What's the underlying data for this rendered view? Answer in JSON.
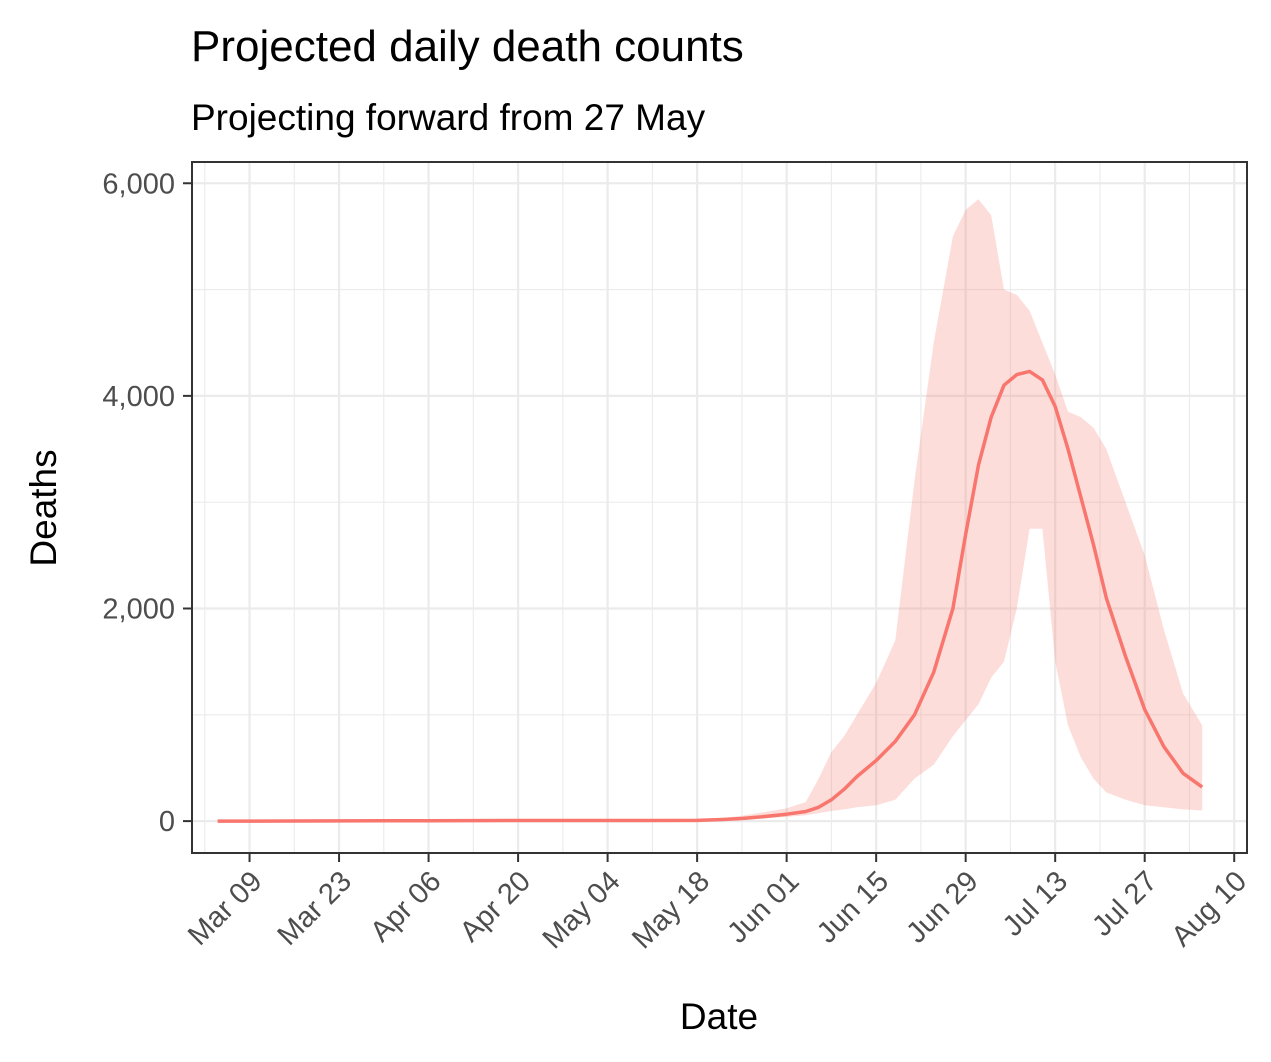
{
  "chart_data": {
    "type": "line",
    "title": "Projected daily death counts",
    "subtitle": "Projecting forward from 27 May",
    "xlabel": "Date",
    "ylabel": "Deaths",
    "x_range": [
      "2020-02-29",
      "2020-08-12"
    ],
    "ylim": [
      -300,
      6200
    ],
    "grid": true,
    "x_ticks": [
      {
        "date": "2020-03-09",
        "label": "Mar 09"
      },
      {
        "date": "2020-03-23",
        "label": "Mar 23"
      },
      {
        "date": "2020-04-06",
        "label": "Apr 06"
      },
      {
        "date": "2020-04-20",
        "label": "Apr 20"
      },
      {
        "date": "2020-05-04",
        "label": "May 04"
      },
      {
        "date": "2020-05-18",
        "label": "May 18"
      },
      {
        "date": "2020-06-01",
        "label": "Jun 01"
      },
      {
        "date": "2020-06-15",
        "label": "Jun 15"
      },
      {
        "date": "2020-06-29",
        "label": "Jun 29"
      },
      {
        "date": "2020-07-13",
        "label": "Jul 13"
      },
      {
        "date": "2020-07-27",
        "label": "Jul 27"
      },
      {
        "date": "2020-08-10",
        "label": "Aug 10"
      }
    ],
    "y_ticks": [
      {
        "value": 0,
        "label": "0"
      },
      {
        "value": 2000,
        "label": "2,000"
      },
      {
        "value": 4000,
        "label": "4,000"
      },
      {
        "value": 6000,
        "label": "6,000"
      }
    ],
    "series": [
      {
        "color": "#F8766D",
        "ribbon_color": "#F8766D",
        "ribbon_opacity": 0.25,
        "x": [
          "2020-03-04",
          "2020-03-09",
          "2020-03-16",
          "2020-03-23",
          "2020-03-30",
          "2020-04-06",
          "2020-04-13",
          "2020-04-20",
          "2020-04-27",
          "2020-05-04",
          "2020-05-11",
          "2020-05-18",
          "2020-05-22",
          "2020-05-25",
          "2020-05-28",
          "2020-06-01",
          "2020-06-04",
          "2020-06-06",
          "2020-06-08",
          "2020-06-10",
          "2020-06-12",
          "2020-06-15",
          "2020-06-18",
          "2020-06-21",
          "2020-06-24",
          "2020-06-27",
          "2020-06-29",
          "2020-07-01",
          "2020-07-03",
          "2020-07-05",
          "2020-07-07",
          "2020-07-09",
          "2020-07-11",
          "2020-07-13",
          "2020-07-15",
          "2020-07-17",
          "2020-07-19",
          "2020-07-21",
          "2020-07-24",
          "2020-07-27",
          "2020-07-30",
          "2020-08-02",
          "2020-08-05"
        ],
        "y": [
          0,
          0,
          1,
          2,
          3,
          4,
          5,
          6,
          6,
          6,
          6,
          7,
          15,
          25,
          40,
          65,
          90,
          130,
          200,
          300,
          420,
          570,
          750,
          1000,
          1400,
          2000,
          2700,
          3350,
          3800,
          4100,
          4200,
          4230,
          4150,
          3900,
          3500,
          3050,
          2600,
          2100,
          1550,
          1050,
          700,
          450,
          320
        ],
        "lower": [
          0,
          0,
          0,
          0,
          1,
          2,
          3,
          4,
          4,
          4,
          4,
          5,
          10,
          15,
          25,
          40,
          55,
          75,
          95,
          110,
          130,
          150,
          200,
          400,
          530,
          800,
          950,
          1100,
          1350,
          1500,
          2000,
          2750,
          2750,
          1500,
          900,
          600,
          400,
          270,
          200,
          150,
          130,
          110,
          100
        ],
        "upper": [
          0,
          1,
          2,
          3,
          4,
          6,
          8,
          10,
          11,
          11,
          11,
          15,
          30,
          50,
          80,
          120,
          180,
          400,
          650,
          800,
          1000,
          1300,
          1700,
          3200,
          4500,
          5500,
          5750,
          5850,
          5700,
          5000,
          4950,
          4800,
          4500,
          4200,
          3850,
          3800,
          3700,
          3500,
          3000,
          2500,
          1800,
          1200,
          900
        ]
      }
    ]
  }
}
